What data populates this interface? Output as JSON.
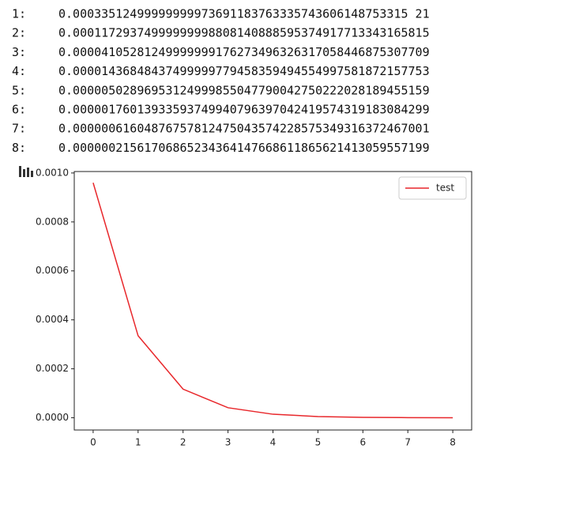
{
  "output_lines": [
    {
      "label": "1:",
      "text": "0.00033512499999999973691183763335743606148753315 21"
    },
    {
      "label": "2:",
      "text": "0.00011729374999999998808140888595374917713343165815"
    },
    {
      "label": "3:",
      "text": "0.00004105281249999999176273496326317058446875307709"
    },
    {
      "label": "4:",
      "text": "0.00001436848437499999779458359494554997581872157753"
    },
    {
      "label": "5:",
      "text": "0.00000502896953124999855047790042750222028189455159"
    },
    {
      "label": "6:",
      "text": "0.00000176013933593749940796397042419574319183084299"
    },
    {
      "label": "7:",
      "text": "0.00000061604876757812475043574228575349316372467001"
    },
    {
      "label": "8:",
      "text": "0.00000021561706865234364147668611865621413059557199"
    }
  ],
  "chart_data": {
    "type": "line",
    "x": [
      0,
      1,
      2,
      3,
      4,
      5,
      6,
      7,
      8
    ],
    "series": [
      {
        "name": "test",
        "color": "#e8272b",
        "values": [
          0.00096,
          0.000335,
          0.000117,
          4.1e-05,
          1.44e-05,
          5e-06,
          1.8e-06,
          6e-07,
          2e-07
        ]
      }
    ],
    "xlim": [
      -0.42,
      8.42
    ],
    "xticks": [
      0,
      1,
      2,
      3,
      4,
      5,
      6,
      7,
      8
    ],
    "ylim": [
      -5e-05,
      0.001006
    ],
    "yticks": [
      {
        "value": 0,
        "label": "0.0000"
      },
      {
        "value": 0.0002,
        "label": "0.0002"
      },
      {
        "value": 0.0004,
        "label": "0.0004"
      },
      {
        "value": 0.0006,
        "label": "0.0006"
      },
      {
        "value": 0.0008,
        "label": "0.0008"
      },
      {
        "value": 0.001,
        "label": "0.0010"
      }
    ],
    "legend": "upper right"
  }
}
